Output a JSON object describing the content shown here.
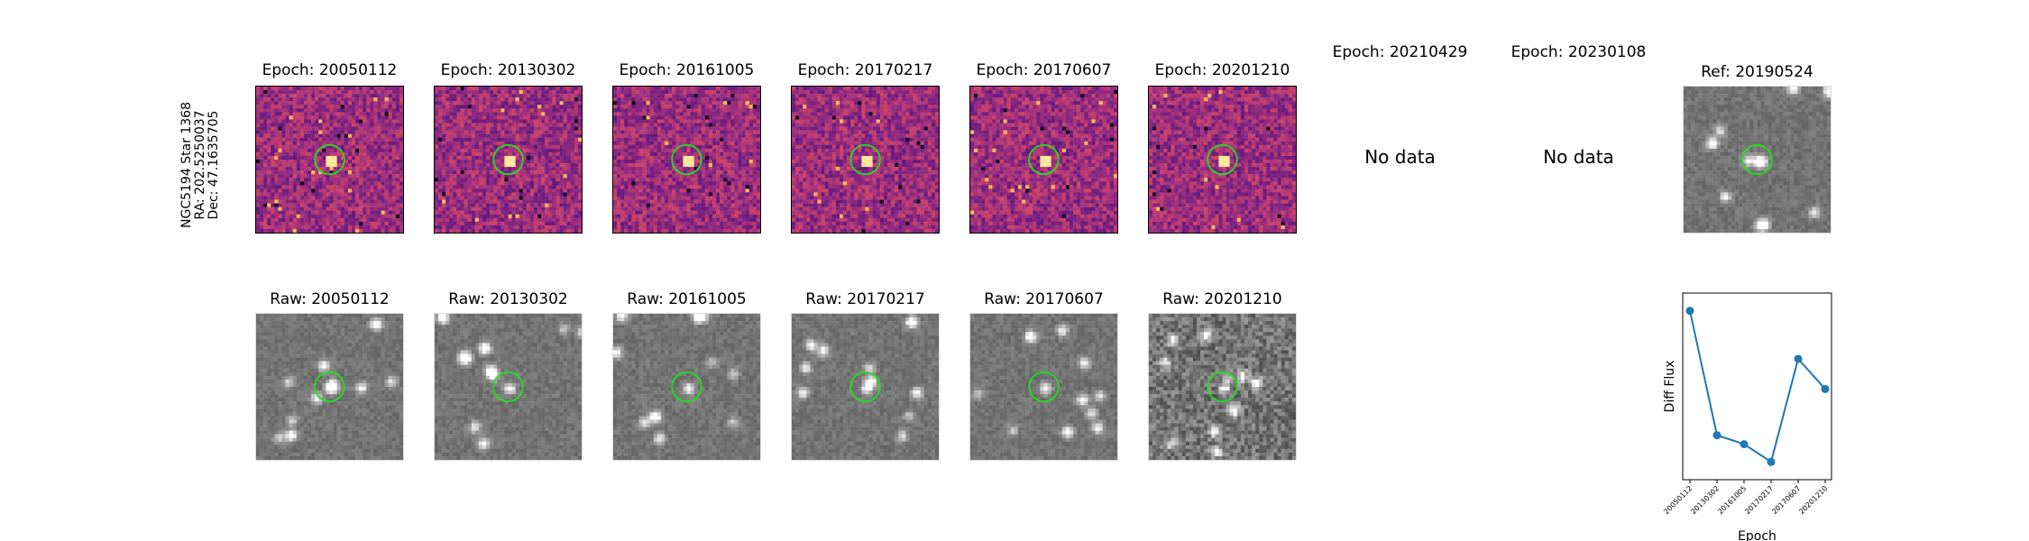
{
  "star": {
    "name": "NGC5194 Star 1368",
    "ra": "RA: 202.5250037",
    "dec": "Dec: 47.1635705"
  },
  "diff_titles": [
    "Epoch: 20050112",
    "Epoch: 20130302",
    "Epoch: 20161005",
    "Epoch: 20170217",
    "Epoch: 20170607",
    "Epoch: 20201210",
    "Epoch: 20210429",
    "Epoch: 20230108"
  ],
  "ref_title": "Ref: 20190524",
  "raw_titles": [
    "Raw: 20050112",
    "Raw: 20130302",
    "Raw: 20161005",
    "Raw: 20170217",
    "Raw: 20170607",
    "Raw: 20201210"
  ],
  "no_data_text": "No data",
  "colors": {
    "circle": "#22dd22",
    "line": "#1f77b4"
  },
  "chart_data": {
    "type": "line",
    "xlabel": "Epoch",
    "ylabel": "Diff Flux",
    "categories": [
      "20050112",
      "20130302",
      "20161005",
      "20170217",
      "20170607",
      "20201210"
    ],
    "values": [
      0.95,
      0.25,
      0.2,
      0.1,
      0.68,
      0.51
    ],
    "ylim": [
      0,
      1.05
    ]
  }
}
